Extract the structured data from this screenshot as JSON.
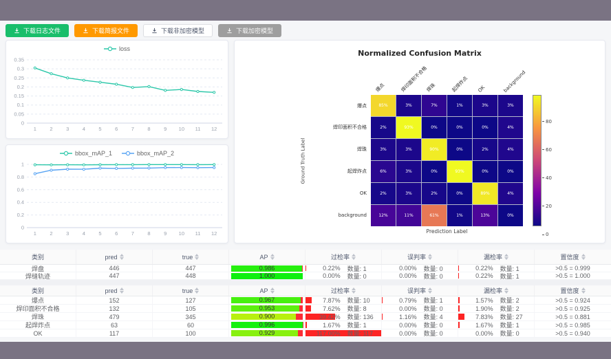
{
  "toolbar": {
    "buttons": [
      {
        "label": "下载日志文件",
        "icon": "download-icon",
        "variant": "success"
      },
      {
        "label": "下载简报文件",
        "icon": "download-icon",
        "variant": "warning"
      },
      {
        "label": "下载非加密模型",
        "icon": "download-icon",
        "variant": "default"
      },
      {
        "label": "下载加密模型",
        "icon": "download-icon",
        "variant": "disabled"
      }
    ]
  },
  "chart_data": [
    {
      "type": "line",
      "title": "loss",
      "x": [
        1,
        2,
        3,
        4,
        5,
        6,
        7,
        8,
        9,
        10,
        11,
        12
      ],
      "series": [
        {
          "name": "loss",
          "color": "#2bc7a9",
          "values": [
            0.305,
            0.273,
            0.25,
            0.237,
            0.226,
            0.215,
            0.197,
            0.202,
            0.181,
            0.186,
            0.175,
            0.17
          ]
        }
      ],
      "ylim": [
        0,
        0.35
      ],
      "yticks": [
        0,
        0.05,
        0.1,
        0.15,
        0.2,
        0.25,
        0.3,
        0.35
      ],
      "grid": true,
      "legend_position": "top"
    },
    {
      "type": "line",
      "title": "bbox_mAP",
      "x": [
        1,
        2,
        3,
        4,
        5,
        6,
        7,
        8,
        9,
        10,
        11,
        12
      ],
      "series": [
        {
          "name": "bbox_mAP_1",
          "color": "#2bc7a9",
          "values": [
            0.993,
            0.992,
            0.994,
            0.992,
            0.995,
            0.996,
            0.996,
            0.997,
            0.997,
            0.997,
            0.996,
            0.997
          ]
        },
        {
          "name": "bbox_mAP_2",
          "color": "#57a3f3",
          "values": [
            0.852,
            0.908,
            0.924,
            0.923,
            0.94,
            0.936,
            0.94,
            0.941,
            0.949,
            0.95,
            0.948,
            0.95
          ]
        }
      ],
      "ylim": [
        0,
        1
      ],
      "yticks": [
        0,
        0.2,
        0.4,
        0.6,
        0.8,
        1
      ],
      "grid": true,
      "legend_position": "top"
    },
    {
      "type": "heatmap",
      "title": "Normalized Confusion Matrix",
      "xlabel": "Prediction Label",
      "ylabel": "Ground Truth Label",
      "labels": [
        "爆点",
        "焊印面积不合格",
        "焊珠",
        "起焊炸点",
        "OK",
        "background"
      ],
      "matrix_pct": [
        [
          85,
          3,
          7,
          1,
          3,
          3
        ],
        [
          2,
          93,
          0,
          0,
          0,
          4
        ],
        [
          3,
          3,
          90,
          0,
          2,
          4
        ],
        [
          6,
          3,
          0,
          93,
          0,
          0
        ],
        [
          2,
          3,
          2,
          0,
          89,
          4
        ],
        [
          12,
          11,
          61,
          1,
          13,
          0
        ]
      ],
      "vmax": 93,
      "colorbar_ticks": [
        0,
        20,
        40,
        60,
        80
      ],
      "colormap": "plasma",
      "legend_position": "right-colorbar"
    }
  ],
  "tables": {
    "headers": [
      {
        "key": "class",
        "label": "类别",
        "sortable": false
      },
      {
        "key": "pred",
        "label": "pred",
        "sortable": true
      },
      {
        "key": "true",
        "label": "true",
        "sortable": true
      },
      {
        "key": "ap",
        "label": "AP",
        "sortable": true
      },
      {
        "key": "over",
        "label": "过检率",
        "sortable": true
      },
      {
        "key": "mis",
        "label": "误判率",
        "sortable": true
      },
      {
        "key": "miss",
        "label": "漏检率",
        "sortable": true
      },
      {
        "key": "conf",
        "label": "置信度",
        "sortable": true
      }
    ],
    "table1": {
      "rows": [
        {
          "class": "焊盘",
          "pred": "446",
          "true": "447",
          "ap": 0.986,
          "ap_label": "0.986",
          "over_pct": "0.22%",
          "over_val": 0.22,
          "over_count": "数量: 1",
          "mis_pct": "0.00%",
          "mis_val": 0,
          "mis_count": "数量: 0",
          "miss_pct": "0.22%",
          "miss_val": 0.22,
          "miss_count": "数量: 1",
          "conf": ">0.5 = 0.999"
        },
        {
          "class": "焊缝轨迹",
          "pred": "447",
          "true": "448",
          "ap": 1.0,
          "ap_label": "1.000",
          "over_pct": "0.00%",
          "over_val": 0,
          "over_count": "数量: 0",
          "mis_pct": "0.00%",
          "mis_val": 0,
          "mis_count": "数量: 0",
          "miss_pct": "0.22%",
          "miss_val": 0.22,
          "miss_count": "数量: 1",
          "conf": ">0.5 = 1.000"
        }
      ]
    },
    "table2": {
      "rows": [
        {
          "class": "爆点",
          "pred": "152",
          "true": "127",
          "ap": 0.967,
          "ap_label": "0.967",
          "over_pct": "7.87%",
          "over_val": 7.87,
          "over_count": "数量: 10",
          "mis_pct": "0.79%",
          "mis_val": 0.79,
          "mis_count": "数量: 1",
          "miss_pct": "1.57%",
          "miss_val": 1.57,
          "miss_count": "数量: 2",
          "conf": ">0.5 = 0.924"
        },
        {
          "class": "焊印面积不合格",
          "pred": "132",
          "true": "105",
          "ap": 0.953,
          "ap_label": "0.953",
          "over_pct": "7.62%",
          "over_val": 7.62,
          "over_count": "数量: 8",
          "mis_pct": "0.00%",
          "mis_val": 0,
          "mis_count": "数量: 0",
          "miss_pct": "1.90%",
          "miss_val": 1.9,
          "miss_count": "数量: 2",
          "conf": ">0.5 = 0.925"
        },
        {
          "class": "焊珠",
          "pred": "479",
          "true": "345",
          "ap": 0.9,
          "ap_label": "0.900",
          "over_pct": "39.42%",
          "over_val": 39.42,
          "over_count": "数量: 136",
          "mis_pct": "1.16%",
          "mis_val": 1.16,
          "mis_count": "数量: 4",
          "miss_pct": "7.83%",
          "miss_val": 7.83,
          "miss_count": "数量: 27",
          "conf": ">0.5 = 0.881"
        },
        {
          "class": "起焊炸点",
          "pred": "63",
          "true": "60",
          "ap": 0.996,
          "ap_label": "0.996",
          "over_pct": "1.67%",
          "over_val": 1.67,
          "over_count": "数量: 1",
          "mis_pct": "0.00%",
          "mis_val": 0,
          "mis_count": "数量: 0",
          "miss_pct": "1.67%",
          "miss_val": 1.67,
          "miss_count": "数量: 1",
          "conf": ">0.5 = 0.985"
        },
        {
          "class": "OK",
          "pred": "117",
          "true": "100",
          "ap": 0.929,
          "ap_label": "0.929",
          "over_pct": "117.00%",
          "over_val": 117,
          "over_count": "数量: 117",
          "mis_pct": "0.00%",
          "mis_val": 0,
          "mis_count": "数量: 0",
          "miss_pct": "0.00%",
          "miss_val": 0,
          "miss_count": "数量: 0",
          "conf": ">0.5 = 0.940"
        }
      ]
    }
  }
}
